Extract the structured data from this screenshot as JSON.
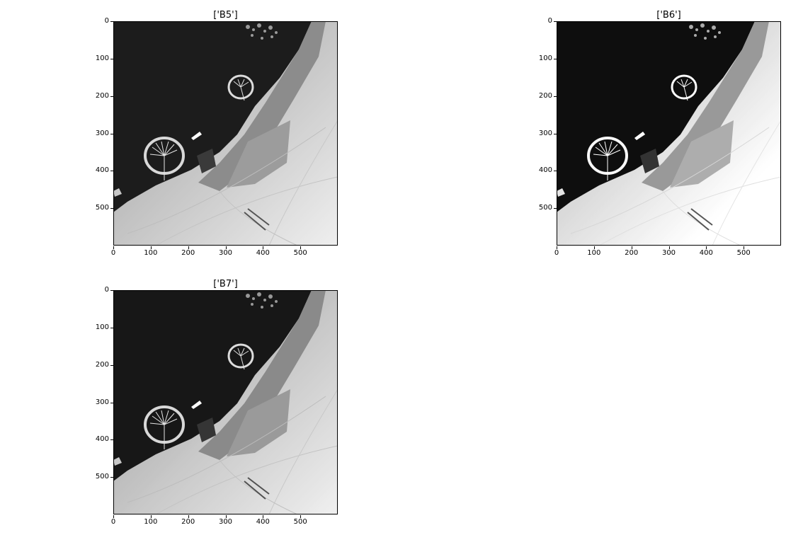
{
  "panels": [
    {
      "title": "['B5']",
      "variant": "b5"
    },
    {
      "title": "['B6']",
      "variant": "b6"
    },
    {
      "title": "['B7']",
      "variant": "b7"
    }
  ],
  "axes": {
    "y_ticks": [
      "0",
      "100",
      "200",
      "300",
      "400",
      "500"
    ],
    "x_ticks": [
      "0",
      "100",
      "200",
      "300",
      "400",
      "500"
    ],
    "x_range": [
      0,
      600
    ],
    "y_range": [
      0,
      600
    ],
    "y_inverted": true
  },
  "colors": {
    "sea": "#1c1c1c",
    "urban": "#8a8a8a",
    "desert": "#ececec",
    "frame": "#000000"
  }
}
